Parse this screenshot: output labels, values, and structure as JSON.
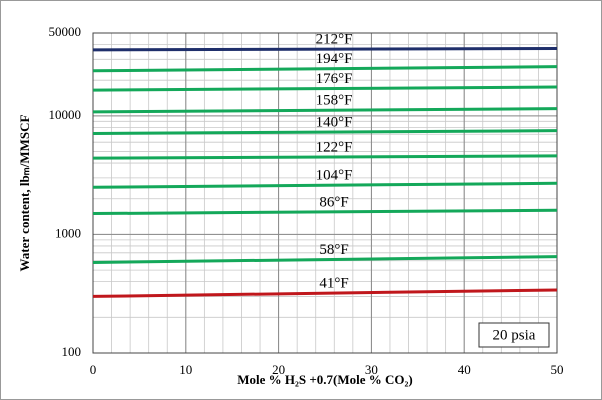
{
  "chart_data": {
    "type": "line",
    "log_y": true,
    "grid": true,
    "xlabel": "Mole % H₂S +0.7(Mole % CO₂)",
    "ylabel": "Water content, lbₘ/MMSCF",
    "annotation": "20 psia",
    "x": [
      0,
      50
    ],
    "xlim": [
      0,
      50
    ],
    "xticks": [
      0,
      10,
      20,
      30,
      40,
      50
    ],
    "ylim": [
      100,
      50000
    ],
    "yticks": [
      100,
      1000,
      10000,
      50000
    ],
    "series": [
      {
        "name": "212°F",
        "color": "#1f2f6b",
        "values": [
          36000,
          37000
        ]
      },
      {
        "name": "194°F",
        "color": "#14a85a",
        "values": [
          24000,
          26000
        ]
      },
      {
        "name": "176°F",
        "color": "#14a85a",
        "values": [
          16500,
          17500
        ]
      },
      {
        "name": "158°F",
        "color": "#14a85a",
        "values": [
          10800,
          11500
        ]
      },
      {
        "name": "140°F",
        "color": "#14a85a",
        "values": [
          7100,
          7500
        ]
      },
      {
        "name": "122°F",
        "color": "#14a85a",
        "values": [
          4400,
          4600
        ]
      },
      {
        "name": "104°F",
        "color": "#14a85a",
        "values": [
          2500,
          2700
        ]
      },
      {
        "name": "86°F",
        "color": "#14a85a",
        "values": [
          1500,
          1600
        ]
      },
      {
        "name": "58°F",
        "color": "#14a85a",
        "values": [
          580,
          650
        ]
      },
      {
        "name": "41°F",
        "color": "#c0171c",
        "values": [
          300,
          340
        ]
      }
    ]
  }
}
